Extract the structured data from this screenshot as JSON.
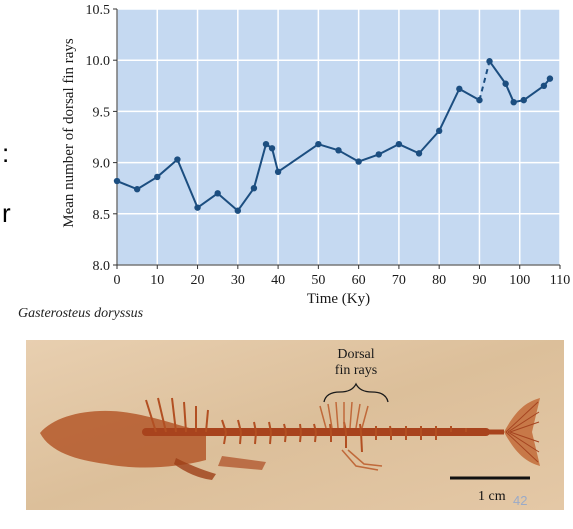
{
  "fragments": [
    ":",
    "r"
  ],
  "chart_data": {
    "type": "line",
    "xlabel": "Time (Ky)",
    "ylabel": "Mean number of dorsal fin rays",
    "xlim": [
      0,
      110
    ],
    "ylim": [
      8.0,
      10.5
    ],
    "xticks": [
      "0",
      "10",
      "20",
      "30",
      "40",
      "50",
      "60",
      "70",
      "80",
      "90",
      "100",
      "110"
    ],
    "yticks": [
      "8.0",
      "8.5",
      "9.0",
      "9.5",
      "10.0",
      "10.5"
    ],
    "grid": true,
    "colors": {
      "background": "#c5d9f1",
      "line": "#1c4e80",
      "grid": "#ffffff"
    },
    "series": [
      {
        "x": [
          0,
          5,
          10,
          15,
          20,
          25,
          30,
          34,
          37,
          38.5,
          40,
          50,
          55,
          60,
          65,
          70,
          75,
          80,
          85,
          90,
          92.5,
          96.5,
          98.5,
          101,
          106,
          107.5
        ],
        "y": [
          8.82,
          8.74,
          8.86,
          9.03,
          8.56,
          8.7,
          8.53,
          8.75,
          9.18,
          9.14,
          8.91,
          9.18,
          9.12,
          9.01,
          9.08,
          9.18,
          9.09,
          9.31,
          9.72,
          9.61,
          9.99,
          9.77,
          9.59,
          9.61,
          9.75,
          9.82
        ],
        "dashed_segment": [
          19,
          20
        ]
      }
    ]
  },
  "figure": {
    "species": "Gasterosteus doryssus",
    "photo_labels": [
      "Dorsal",
      "fin rays"
    ],
    "scale_label": "1 cm"
  },
  "page_number": "42"
}
